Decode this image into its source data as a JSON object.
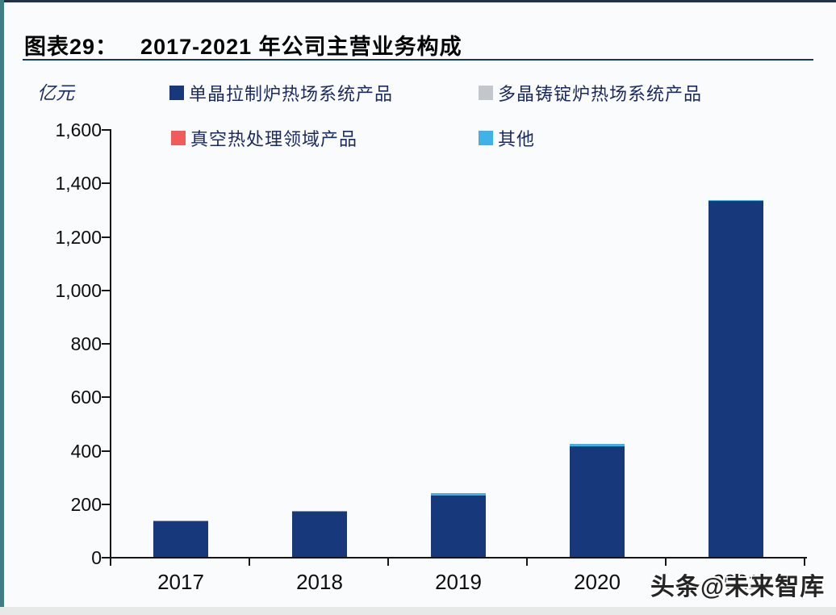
{
  "figure": {
    "label": "图表29：",
    "title": "2017-2021 年公司主营业务构成",
    "unit": "亿元",
    "watermark": "头条@未来智库"
  },
  "colors": {
    "series_mono": "#17397c",
    "series_poly": "#c3c7cb",
    "series_vacuum": "#f15b5b",
    "series_other": "#3fb3e8",
    "title_underline": "#16365c",
    "top_border": "#223247",
    "left_strip": "#3f7e82",
    "axis": "#161616"
  },
  "chart_data": {
    "type": "bar",
    "stacked": true,
    "title": "2017-2021 年公司主营业务构成",
    "xlabel": "",
    "ylabel": "亿元",
    "categories": [
      "2017",
      "2018",
      "2019",
      "2020",
      "2021"
    ],
    "series": [
      {
        "name": "单晶拉制炉热场系统产品",
        "color_key": "series_mono",
        "values": [
          133,
          170,
          230,
          414,
          1330
        ]
      },
      {
        "name": "多晶铸锭炉热场系统产品",
        "color_key": "series_poly",
        "values": [
          0,
          0,
          0,
          0,
          0
        ]
      },
      {
        "name": "真空热处理领域产品",
        "color_key": "series_vacuum",
        "values": [
          0,
          0,
          0,
          0,
          0
        ]
      },
      {
        "name": "其他",
        "color_key": "series_other",
        "values": [
          2,
          3,
          9,
          8,
          5
        ]
      }
    ],
    "ylim": [
      0,
      1600
    ],
    "ytick_step": 200,
    "ytick_labels": [
      "0",
      "200",
      "400",
      "600",
      "800",
      "1,000",
      "1,200",
      "1,400",
      "1,600"
    ],
    "legend_position": "top",
    "grid": false
  }
}
